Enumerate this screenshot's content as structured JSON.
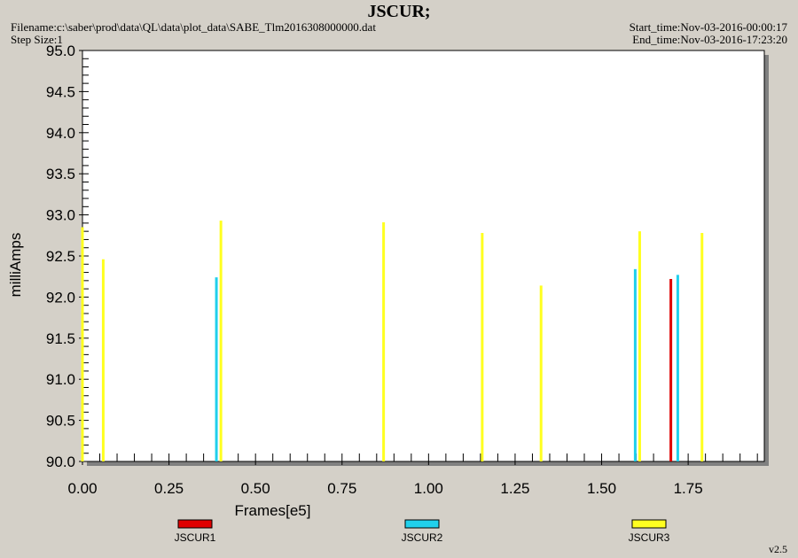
{
  "header": {
    "title": "JSCUR;",
    "filename": "Filename:c:\\saber\\prod\\data\\QL\\data\\plot_data\\SABE_Tlm2016308000000.dat",
    "step_size": "Step Size:1",
    "start_time": "Start_time:Nov-03-2016-00:00:17",
    "end_time": "End_time:Nov-03-2016-17:23:20"
  },
  "version": "v2.5",
  "colors": {
    "background": "#d4d0c8",
    "plot_area": "#ffffff",
    "JSCUR1": "#e00000",
    "JSCUR2": "#20d0ec",
    "JSCUR3": "#ffff20"
  },
  "chart_data": {
    "type": "bar",
    "title": "JSCUR;",
    "xlabel": "Frames[e5]",
    "ylabel": "milliAmps",
    "xlim": [
      0,
      1.97
    ],
    "ylim": [
      90.0,
      95.0
    ],
    "grid": false,
    "legend_position": "bottom",
    "x_ticks": [
      "0.00",
      "0.25",
      "0.50",
      "0.75",
      "1.00",
      "1.25",
      "1.50",
      "1.75"
    ],
    "y_ticks": [
      "90.0",
      "90.5",
      "91.0",
      "91.5",
      "92.0",
      "92.5",
      "93.0",
      "93.5",
      "94.0",
      "94.5",
      "95.0"
    ],
    "series": [
      {
        "name": "JSCUR1",
        "points": [
          {
            "x": 1.7,
            "y": 92.22
          }
        ]
      },
      {
        "name": "JSCUR2",
        "points": [
          {
            "x": 0.387,
            "y": 92.24
          },
          {
            "x": 1.597,
            "y": 92.34
          },
          {
            "x": 1.72,
            "y": 92.27
          }
        ]
      },
      {
        "name": "JSCUR3",
        "points": [
          {
            "x": 0.0,
            "y": 92.85
          },
          {
            "x": 0.06,
            "y": 92.46
          },
          {
            "x": 0.4,
            "y": 92.93
          },
          {
            "x": 0.87,
            "y": 92.91
          },
          {
            "x": 1.155,
            "y": 92.78
          },
          {
            "x": 1.325,
            "y": 92.14
          },
          {
            "x": 1.61,
            "y": 92.8
          },
          {
            "x": 1.79,
            "y": 92.78
          }
        ]
      }
    ]
  }
}
